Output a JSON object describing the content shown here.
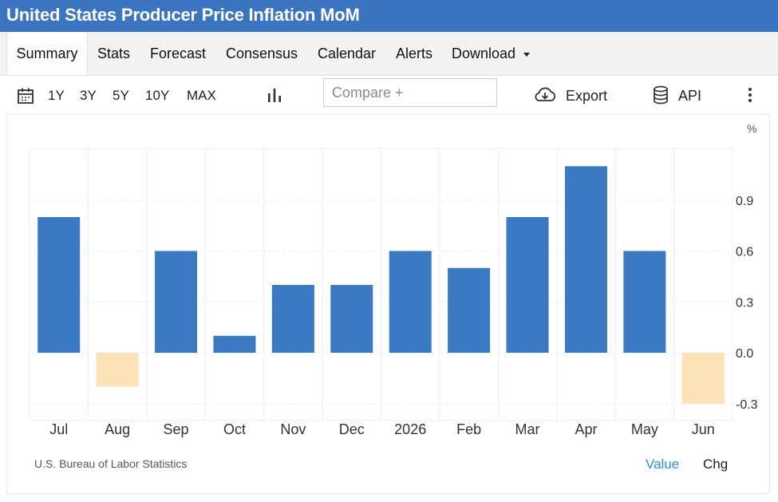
{
  "header": {
    "title": "United States Producer Price Inflation MoM"
  },
  "tabs": [
    {
      "label": "Summary",
      "active": true
    },
    {
      "label": "Stats"
    },
    {
      "label": "Forecast"
    },
    {
      "label": "Consensus"
    },
    {
      "label": "Calendar"
    },
    {
      "label": "Alerts"
    },
    {
      "label": "Download"
    }
  ],
  "toolbar": {
    "ranges": [
      "1Y",
      "3Y",
      "5Y",
      "10Y",
      "MAX"
    ],
    "compare_placeholder": "Compare +",
    "export_label": "Export",
    "api_label": "API",
    "icons": [
      "calendar-icon",
      "bar-chart-icon",
      "cloud-download-icon",
      "database-icon",
      "more-vertical-icon"
    ]
  },
  "chart_data": {
    "type": "bar",
    "categories": [
      "Jul",
      "Aug",
      "Sep",
      "Oct",
      "Nov",
      "Dec",
      "2026",
      "Feb",
      "Mar",
      "Apr",
      "May",
      "Jun"
    ],
    "values": [
      0.8,
      -0.2,
      0.6,
      0.1,
      0.4,
      0.4,
      0.6,
      0.5,
      0.8,
      1.1,
      0.6,
      -0.3
    ],
    "unit": "%",
    "yticks": [
      -0.3,
      0.0,
      0.3,
      0.6,
      0.9
    ],
    "ylim": [
      -0.4,
      1.2
    ],
    "grid": true,
    "colors": {
      "positive": "#3b79c2",
      "negative": "#fbe2b7"
    }
  },
  "footer": {
    "source": "U.S. Bureau of Labor Statistics",
    "value_label": "Value",
    "chg_label": "Chg"
  }
}
